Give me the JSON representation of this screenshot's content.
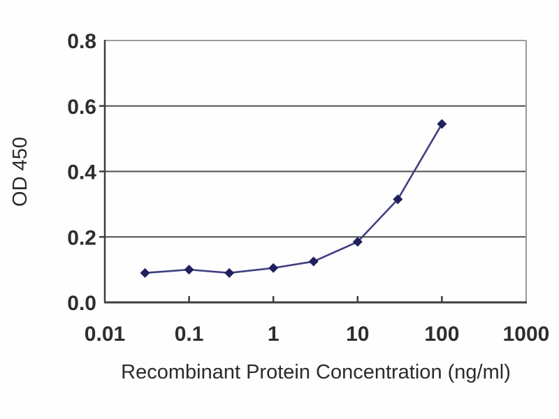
{
  "figure": {
    "background": "#fefefe",
    "kind": "ELISA standard curve plot"
  },
  "chart_data": {
    "type": "line",
    "x": [
      0.03,
      0.1,
      0.3,
      1,
      3,
      10,
      30,
      100
    ],
    "series": [
      {
        "name": "OD 450",
        "values": [
          0.09,
          0.1,
          0.09,
          0.105,
          0.125,
          0.185,
          0.315,
          0.545
        ]
      }
    ],
    "title": "",
    "xlabel": "Recombinant Protein Concentration (ng/ml)",
    "ylabel": "OD 450",
    "x_scale": "log",
    "xlim": [
      0.01,
      1000
    ],
    "ylim": [
      0,
      0.8
    ],
    "x_ticks": [
      0.01,
      0.1,
      1,
      10,
      100,
      1000
    ],
    "x_tick_labels": [
      "0.01",
      "0.1",
      "1",
      "10",
      "100",
      "1000"
    ],
    "y_ticks": [
      0,
      0.2,
      0.4,
      0.6,
      0.8
    ],
    "y_tick_labels": [
      "0.0",
      "0.2",
      "0.4",
      "0.6",
      "0.8"
    ],
    "grid": "horizontal-only",
    "legend": "none",
    "marker": "diamond",
    "colors": {
      "line": "#3f3f82",
      "marker": "#20205e",
      "gridline": "#4f4f4f",
      "axis": "#3e3e3e",
      "frame": "#9a9a9a",
      "text": "#2b2b2b"
    }
  }
}
